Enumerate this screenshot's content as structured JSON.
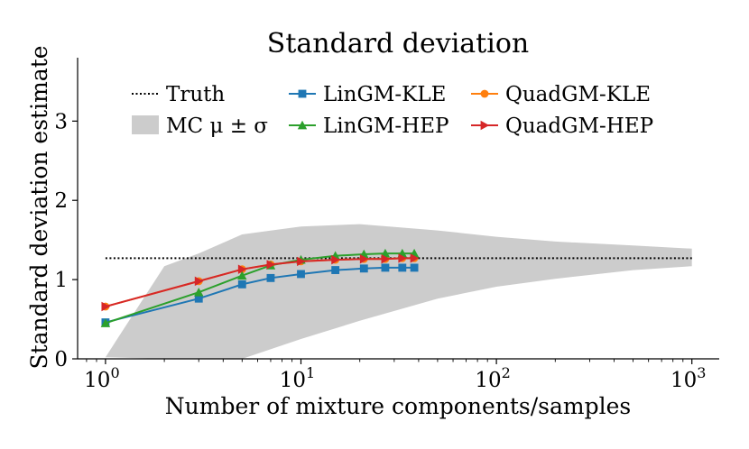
{
  "chart_data": {
    "type": "line",
    "title": "Standard deviation",
    "xlabel": "Number of mixture components/samples",
    "ylabel": "Standard deviation estimate",
    "xscale": "log",
    "xlim": [
      0.72,
      1380
    ],
    "ylim": [
      0,
      3.8
    ],
    "x_ticks": [
      {
        "value": 1,
        "base": "10",
        "exp": "0"
      },
      {
        "value": 10,
        "base": "10",
        "exp": "1"
      },
      {
        "value": 100,
        "base": "10",
        "exp": "2"
      },
      {
        "value": 1000,
        "base": "10",
        "exp": "3"
      }
    ],
    "y_ticks": [
      {
        "value": 0,
        "label": "0"
      },
      {
        "value": 1,
        "label": "1"
      },
      {
        "value": 2,
        "label": "2"
      },
      {
        "value": 3,
        "label": "3"
      }
    ],
    "truth": {
      "name": "Truth",
      "value": 1.27,
      "x_range": [
        1,
        1000
      ],
      "color": "#000000"
    },
    "mc_band": {
      "name": "MC",
      "color": "#cccccc",
      "x": [
        1,
        2,
        3,
        5,
        10,
        20,
        50,
        100,
        200,
        500,
        1000
      ],
      "upper": [
        0.02,
        1.17,
        1.33,
        1.57,
        1.67,
        1.7,
        1.62,
        1.54,
        1.48,
        1.43,
        1.39
      ],
      "lower": [
        0.02,
        0.0,
        0.0,
        0.0,
        0.25,
        0.48,
        0.76,
        0.91,
        1.01,
        1.12,
        1.17
      ]
    },
    "series": [
      {
        "name": "LinGM-KLE",
        "color": "#1f77b4",
        "marker": "square",
        "x": [
          1,
          3,
          5,
          7,
          10,
          15,
          21,
          27,
          33,
          38
        ],
        "values": [
          0.46,
          0.76,
          0.94,
          1.02,
          1.07,
          1.12,
          1.14,
          1.15,
          1.15,
          1.15
        ]
      },
      {
        "name": "QuadGM-KLE",
        "color": "#ff7f0e",
        "marker": "circle",
        "x": [
          1,
          3,
          5,
          7,
          10,
          15,
          21,
          27,
          33,
          38
        ],
        "values": [
          0.66,
          0.98,
          1.13,
          1.19,
          1.23,
          1.25,
          1.26,
          1.26,
          1.27,
          1.27
        ]
      },
      {
        "name": "LinGM-HEP",
        "color": "#2ca02c",
        "marker": "triangle-up",
        "x": [
          1,
          3,
          5,
          7,
          10,
          15,
          21,
          27,
          33,
          38
        ],
        "values": [
          0.45,
          0.84,
          1.05,
          1.18,
          1.25,
          1.3,
          1.32,
          1.33,
          1.33,
          1.33
        ]
      },
      {
        "name": "QuadGM-HEP",
        "color": "#d62728",
        "marker": "triangle-right",
        "x": [
          1,
          3,
          5,
          7,
          10,
          15,
          21,
          27,
          33,
          38
        ],
        "values": [
          0.66,
          0.98,
          1.13,
          1.19,
          1.23,
          1.25,
          1.26,
          1.26,
          1.27,
          1.27
        ]
      }
    ],
    "legend": {
      "placement": "upper-left",
      "columns": 3,
      "entries": [
        {
          "key": "truth",
          "label": "Truth"
        },
        {
          "key": "LinGM-KLE",
          "label": "LinGM-KLE"
        },
        {
          "key": "QuadGM-KLE",
          "label": "QuadGM-KLE"
        },
        {
          "key": "mc_band",
          "label": "MC μ ± σ"
        },
        {
          "key": "LinGM-HEP",
          "label": "LinGM-HEP"
        },
        {
          "key": "QuadGM-HEP",
          "label": "QuadGM-HEP"
        }
      ]
    }
  }
}
